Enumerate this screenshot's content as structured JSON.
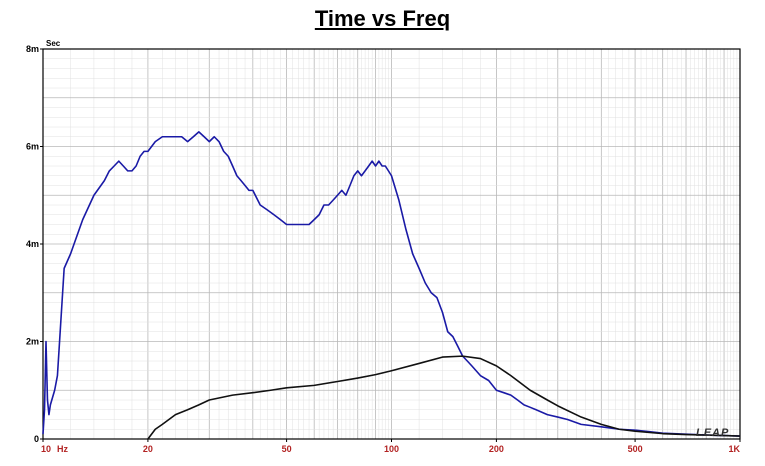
{
  "chart_data": {
    "type": "line",
    "title": "Time vs Freq",
    "ylabel": "Sec",
    "xscale": "log",
    "xlim": [
      10,
      1000
    ],
    "ylim": [
      0,
      0.008
    ],
    "x_ticks": [
      {
        "value": 10,
        "label": "10"
      },
      {
        "value": 20,
        "label": "20"
      },
      {
        "value": 50,
        "label": "50"
      },
      {
        "value": 100,
        "label": "100"
      },
      {
        "value": 200,
        "label": "200"
      },
      {
        "value": 500,
        "label": "500"
      },
      {
        "value": 1000,
        "label": "1K"
      }
    ],
    "x_unit_label": "Hz",
    "y_ticks": [
      {
        "value": 0,
        "label": "0"
      },
      {
        "value": 0.002,
        "label": "2m"
      },
      {
        "value": 0.004,
        "label": "4m"
      },
      {
        "value": 0.006,
        "label": "6m"
      },
      {
        "value": 0.008,
        "label": "8m"
      }
    ],
    "grid": true,
    "brand_label": "LEAP",
    "series": [
      {
        "color": "#1a1aa6",
        "x": [
          10,
          10.1,
          10.2,
          10.3,
          10.4,
          10.5,
          10.8,
          11,
          11.5,
          12,
          13,
          14,
          15,
          15.5,
          16,
          16.5,
          17,
          17.5,
          18,
          18.5,
          19,
          19.5,
          20,
          21,
          22,
          23,
          24,
          25,
          26,
          27,
          28,
          29,
          30,
          31,
          32,
          33,
          34,
          35,
          36,
          37,
          38,
          39,
          40,
          42,
          44,
          46,
          48,
          50,
          52,
          55,
          58,
          60,
          62,
          64,
          66,
          68,
          70,
          72,
          74,
          76,
          78,
          80,
          82,
          84,
          86,
          88,
          90,
          92,
          94,
          96,
          98,
          100,
          105,
          110,
          115,
          120,
          125,
          130,
          135,
          140,
          145,
          150,
          155,
          160,
          165,
          170,
          180,
          190,
          200,
          210,
          220,
          230,
          240,
          250,
          260,
          280,
          300,
          320,
          350,
          400,
          450,
          500,
          550,
          600,
          700,
          800,
          900,
          1000
        ],
        "y": [
          0.0001,
          0.0006,
          0.002,
          0.0008,
          0.0005,
          0.0007,
          0.001,
          0.0013,
          0.0035,
          0.0038,
          0.0045,
          0.005,
          0.0053,
          0.0055,
          0.0056,
          0.0057,
          0.0056,
          0.0055,
          0.0055,
          0.0056,
          0.0058,
          0.0059,
          0.0059,
          0.0061,
          0.0062,
          0.0062,
          0.0062,
          0.0062,
          0.0061,
          0.0062,
          0.0063,
          0.0062,
          0.0061,
          0.0062,
          0.0061,
          0.0059,
          0.0058,
          0.0056,
          0.0054,
          0.0053,
          0.0052,
          0.0051,
          0.0051,
          0.0048,
          0.0047,
          0.0046,
          0.0045,
          0.0044,
          0.0044,
          0.0044,
          0.0044,
          0.0045,
          0.0046,
          0.0048,
          0.0048,
          0.0049,
          0.005,
          0.0051,
          0.005,
          0.0052,
          0.0054,
          0.0055,
          0.0054,
          0.0055,
          0.0056,
          0.0057,
          0.0056,
          0.0057,
          0.0056,
          0.0056,
          0.0055,
          0.0054,
          0.0049,
          0.0043,
          0.0038,
          0.0035,
          0.0032,
          0.003,
          0.0029,
          0.0026,
          0.0022,
          0.0021,
          0.0019,
          0.0017,
          0.0016,
          0.0015,
          0.0013,
          0.0012,
          0.001,
          0.00095,
          0.0009,
          0.0008,
          0.0007,
          0.00065,
          0.0006,
          0.0005,
          0.00045,
          0.0004,
          0.0003,
          0.00025,
          0.0002,
          0.00018,
          0.00015,
          0.00012,
          0.0001,
          8e-05,
          7e-05,
          6e-05
        ]
      },
      {
        "color": "#111111",
        "x": [
          20,
          21,
          22,
          24,
          26,
          28,
          30,
          35,
          40,
          45,
          50,
          60,
          70,
          80,
          90,
          100,
          120,
          140,
          160,
          180,
          200,
          220,
          250,
          280,
          300,
          350,
          400,
          450,
          500,
          600,
          700,
          800,
          900,
          1000
        ],
        "y": [
          0,
          0.0002,
          0.0003,
          0.0005,
          0.0006,
          0.0007,
          0.0008,
          0.0009,
          0.00095,
          0.001,
          0.00105,
          0.0011,
          0.00118,
          0.00125,
          0.00132,
          0.0014,
          0.00155,
          0.00168,
          0.0017,
          0.00165,
          0.0015,
          0.0013,
          0.001,
          0.0008,
          0.00068,
          0.00045,
          0.0003,
          0.0002,
          0.00016,
          0.00011,
          9e-05,
          8e-05,
          7e-05,
          6e-05
        ]
      }
    ]
  }
}
